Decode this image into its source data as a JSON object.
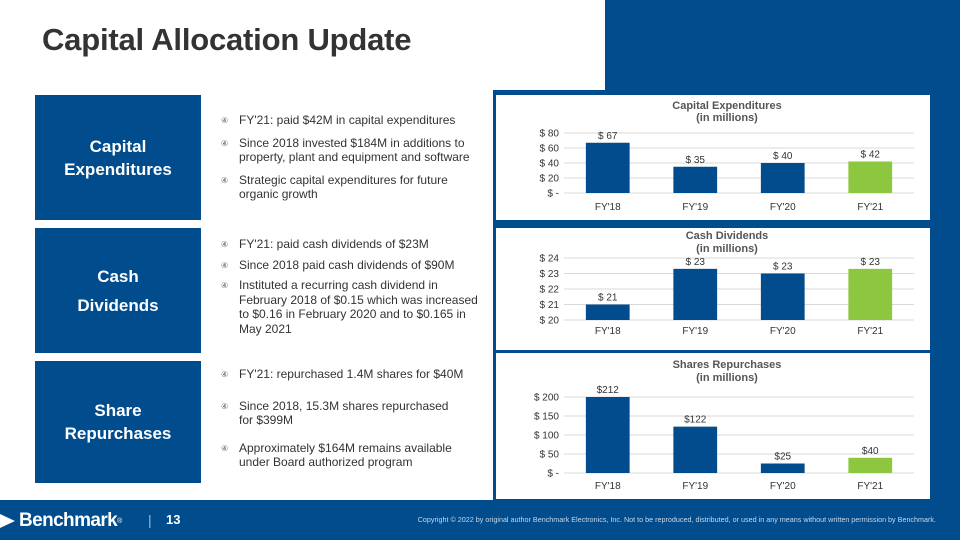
{
  "title": "Capital Allocation Update",
  "colors": {
    "brand_blue": "#004C8C",
    "accent_green": "#8DC63F"
  },
  "sections": [
    {
      "id": "capex",
      "label_lines": [
        "Capital",
        "Expenditures"
      ],
      "bullets": [
        "FY'21: paid $42M in capital expenditures",
        "Since 2018 invested $184M in additions to property, plant and equipment and software",
        "Strategic capital expenditures for future organic growth"
      ]
    },
    {
      "id": "dividends",
      "label_lines": [
        "Cash",
        "Dividends"
      ],
      "bullets": [
        "FY'21: paid cash dividends of $23M",
        "Since 2018 paid cash dividends of $90M",
        "Instituted a recurring cash dividend in February 2018 of $0.15 which was increased to $0.16 in February 2020 and to $0.165 in May 2021"
      ]
    },
    {
      "id": "repurchases",
      "label_lines": [
        "Share",
        "Repurchases"
      ],
      "bullets": [
        "FY'21: repurchased 1.4M shares for $40M",
        "Since 2018, 15.3M shares repurchased for $399M",
        "Approximately $164M remains available under Board authorized program"
      ]
    }
  ],
  "chart_data": [
    {
      "type": "bar",
      "title": "Capital Expenditures",
      "subtitle": "(in millions)",
      "categories": [
        "FY'18",
        "FY'19",
        "FY'20",
        "FY'21"
      ],
      "values": [
        67,
        35,
        40,
        42
      ],
      "data_labels": [
        "$ 67",
        "$ 35",
        "$ 40",
        "$ 42"
      ],
      "bar_colors": [
        "#004C8C",
        "#004C8C",
        "#004C8C",
        "#8DC63F"
      ],
      "ylim": [
        0,
        80
      ],
      "yticks": [
        0,
        20,
        40,
        60,
        80
      ],
      "ytick_labels": [
        "$ -",
        "$ 20",
        "$ 40",
        "$ 60",
        "$ 80"
      ],
      "grid": true
    },
    {
      "type": "bar",
      "title": "Cash Dividends",
      "subtitle": "(in millions)",
      "categories": [
        "FY'18",
        "FY'19",
        "FY'20",
        "FY'21"
      ],
      "values": [
        21,
        23.3,
        23,
        23.3
      ],
      "data_labels": [
        "$ 21",
        "$ 23",
        "$ 23",
        "$ 23"
      ],
      "bar_colors": [
        "#004C8C",
        "#004C8C",
        "#004C8C",
        "#8DC63F"
      ],
      "ylim": [
        20,
        24
      ],
      "yticks": [
        20,
        21,
        22,
        23,
        24
      ],
      "ytick_labels": [
        "$ 20",
        "$ 21",
        "$ 22",
        "$ 23",
        "$ 24"
      ],
      "grid": true
    },
    {
      "type": "bar",
      "title": "Shares Repurchases",
      "subtitle": "(in millions)",
      "categories": [
        "FY'18",
        "FY'19",
        "FY'20",
        "FY'21"
      ],
      "values": [
        212,
        122,
        25,
        40
      ],
      "data_labels": [
        "$212",
        "$122",
        "$25",
        "$40"
      ],
      "bar_colors": [
        "#004C8C",
        "#004C8C",
        "#004C8C",
        "#8DC63F"
      ],
      "ylim": [
        0,
        200
      ],
      "yticks": [
        0,
        50,
        100,
        150,
        200
      ],
      "ytick_labels": [
        "$ -",
        "$ 50",
        "$ 100",
        "$ 150",
        "$ 200"
      ],
      "grid": true
    }
  ],
  "footer": {
    "logo_text": "Benchmark",
    "logo_mark": "®",
    "divider": "|",
    "page_number": "13",
    "copyright": "Copyright © 2022 by original author Benchmark Electronics, Inc. Not to be reproduced, distributed, or used in any means without written permission by Benchmark."
  }
}
